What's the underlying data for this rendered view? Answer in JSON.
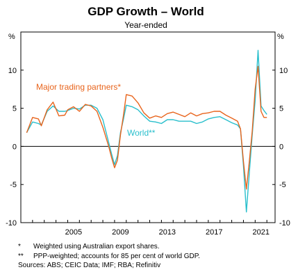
{
  "chart_data": {
    "type": "line",
    "title": "GDP Growth – World",
    "subtitle": "Year-ended",
    "ylabel_left": "%",
    "ylabel_right": "%",
    "ylim": [
      -10,
      15
    ],
    "xlim": [
      2001.0,
      2022.7
    ],
    "yticks": [
      -10,
      -5,
      0,
      5,
      10
    ],
    "ytick_labels": [
      "-10",
      "-5",
      "0",
      "5",
      "10"
    ],
    "xticks": [
      2005,
      2009,
      2013,
      2017,
      2021
    ],
    "xtick_labels": [
      "2005",
      "2009",
      "2013",
      "2017",
      "2021"
    ],
    "grid": false,
    "series": [
      {
        "name": "Major trading partners*",
        "color": "#e8641c",
        "x": [
          2001.5,
          2002.0,
          2002.5,
          2002.75,
          2003.25,
          2003.75,
          2004.25,
          2004.75,
          2005.0,
          2005.5,
          2006.0,
          2006.5,
          2007.0,
          2007.5,
          2008.0,
          2008.5,
          2008.75,
          2009.0,
          2009.25,
          2009.5,
          2009.75,
          2010.0,
          2010.5,
          2011.0,
          2011.5,
          2012.0,
          2012.5,
          2013.0,
          2013.5,
          2014.0,
          2014.5,
          2015.0,
          2015.5,
          2016.0,
          2016.5,
          2017.0,
          2017.5,
          2018.0,
          2018.5,
          2019.0,
          2019.5,
          2019.75,
          2020.0,
          2020.25,
          2020.5,
          2020.75,
          2021.0,
          2021.25,
          2021.5,
          2021.75,
          2022.0
        ],
        "values": [
          1.8,
          3.8,
          3.6,
          2.7,
          4.8,
          5.8,
          4.0,
          4.1,
          4.8,
          5.2,
          4.6,
          5.5,
          5.3,
          4.6,
          2.5,
          0.0,
          -1.5,
          -2.8,
          -1.8,
          1.5,
          4.0,
          6.8,
          6.6,
          5.7,
          4.4,
          3.7,
          4.0,
          3.8,
          4.3,
          4.5,
          4.2,
          3.9,
          4.4,
          4.0,
          4.3,
          4.4,
          4.6,
          4.6,
          4.1,
          3.7,
          3.3,
          2.3,
          -2.0,
          -5.6,
          -2.0,
          2.0,
          7.5,
          10.5,
          4.6,
          3.8,
          3.8
        ]
      },
      {
        "name": "World**",
        "color": "#29bfcc",
        "x": [
          2001.5,
          2002.0,
          2002.5,
          2002.75,
          2003.25,
          2003.75,
          2004.25,
          2004.75,
          2005.0,
          2005.5,
          2006.0,
          2006.5,
          2007.0,
          2007.5,
          2008.0,
          2008.5,
          2008.75,
          2009.0,
          2009.25,
          2009.5,
          2009.75,
          2010.0,
          2010.5,
          2011.0,
          2011.5,
          2012.0,
          2012.5,
          2013.0,
          2013.5,
          2014.0,
          2014.5,
          2015.0,
          2015.5,
          2016.0,
          2016.5,
          2017.0,
          2017.5,
          2018.0,
          2018.5,
          2019.0,
          2019.5,
          2019.75,
          2020.0,
          2020.25,
          2020.5,
          2020.75,
          2021.0,
          2021.25,
          2021.5,
          2021.75,
          2022.0
        ],
        "values": [
          1.8,
          3.2,
          3.0,
          2.8,
          4.6,
          5.3,
          4.6,
          4.6,
          4.7,
          5.0,
          4.9,
          5.4,
          5.4,
          5.0,
          3.5,
          0.5,
          -1.0,
          -2.4,
          -1.2,
          1.8,
          3.5,
          5.4,
          5.2,
          4.8,
          4.0,
          3.3,
          3.2,
          3.0,
          3.5,
          3.5,
          3.3,
          3.3,
          3.3,
          3.0,
          3.2,
          3.6,
          3.8,
          3.9,
          3.5,
          3.1,
          2.8,
          2.3,
          -2.6,
          -8.6,
          -3.5,
          1.5,
          6.0,
          12.6,
          5.3,
          4.7,
          4.2
        ]
      }
    ],
    "annotations": [
      {
        "text": "Major trading partners*",
        "color": "#e8641c"
      },
      {
        "text": "World**",
        "color": "#29bfcc"
      }
    ]
  },
  "footnotes": [
    {
      "mark": "*",
      "text": "Weighted using Australian export shares."
    },
    {
      "mark": "**",
      "text": "PPP-weighted; accounts for 85 per cent of world GDP."
    }
  ],
  "sources": "Sources: ABS; CEIC Data; IMF; RBA; Refinitiv"
}
